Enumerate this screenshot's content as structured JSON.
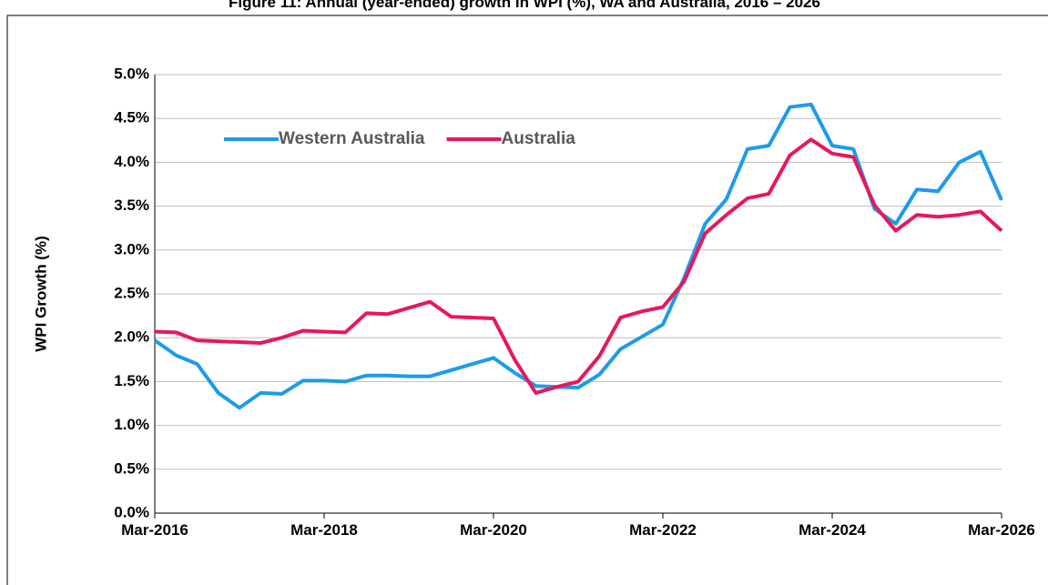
{
  "chart_data": {
    "type": "line",
    "title": "Figure 11: Annual (year-ended) growth in WPI (%), WA and Australia, 2016 – 2026",
    "y_label": "WPI Growth (%)",
    "categories": [
      "Mar-2016",
      null,
      null,
      null,
      null,
      null,
      null,
      null,
      "Mar-2018",
      null,
      null,
      null,
      null,
      null,
      null,
      null,
      "Mar-2020",
      null,
      null,
      null,
      null,
      null,
      null,
      null,
      "Mar-2022",
      null,
      null,
      null,
      null,
      null,
      null,
      null,
      "Mar-2024",
      null,
      null,
      null,
      null,
      null,
      null,
      null,
      "Mar-2026"
    ],
    "series": [
      {
        "name": "Western Australia",
        "color": "#1e9be9",
        "values": [
          1.97,
          1.8,
          1.7,
          1.37,
          1.2,
          1.37,
          1.36,
          1.51,
          1.51,
          1.5,
          1.57,
          1.57,
          1.56,
          1.56,
          1.63,
          1.7,
          1.77,
          1.6,
          1.45,
          1.44,
          1.43,
          1.58,
          1.87,
          2.01,
          2.15,
          2.68,
          3.3,
          3.58,
          4.15,
          4.19,
          4.63,
          4.66,
          4.19,
          4.15,
          3.47,
          3.3,
          3.69,
          3.67,
          4.0,
          4.12,
          3.57
        ]
      },
      {
        "name": "Australia",
        "color": "#e8175d",
        "values": [
          2.07,
          2.06,
          1.97,
          1.96,
          1.95,
          1.94,
          2.0,
          2.08,
          2.07,
          2.06,
          2.28,
          2.27,
          2.34,
          2.41,
          2.24,
          2.23,
          2.22,
          1.75,
          1.37,
          1.44,
          1.5,
          1.79,
          2.23,
          2.3,
          2.35,
          2.64,
          3.19,
          3.4,
          3.59,
          3.64,
          4.08,
          4.26,
          4.1,
          4.06,
          3.51,
          3.22,
          3.4,
          3.38,
          3.4,
          3.44,
          3.22
        ]
      }
    ],
    "ylim": [
      0,
      5
    ],
    "yticks": [
      {
        "value": 0,
        "label": "0.0%"
      },
      {
        "value": 0.5,
        "label": "0.5%"
      },
      {
        "value": 1,
        "label": "1.0%"
      },
      {
        "value": 1.5,
        "label": "1.5%"
      },
      {
        "value": 2,
        "label": "2.0%"
      },
      {
        "value": 2.5,
        "label": "2.5%"
      },
      {
        "value": 3,
        "label": "3.0%"
      },
      {
        "value": 3.5,
        "label": "3.5%"
      },
      {
        "value": 4,
        "label": "4.0%"
      },
      {
        "value": 4.5,
        "label": "4.5%"
      },
      {
        "value": 5,
        "label": "5.0%"
      }
    ],
    "grid": true,
    "legend": "top-left"
  }
}
